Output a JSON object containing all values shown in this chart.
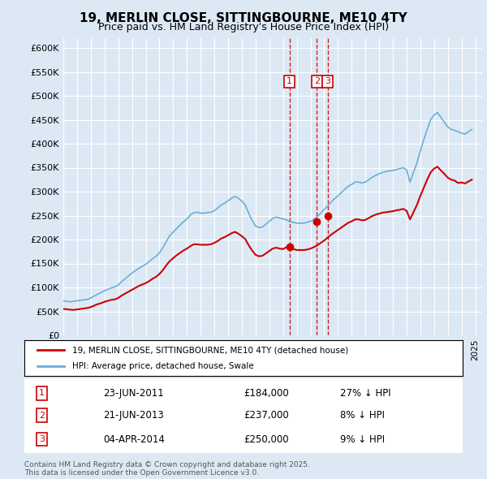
{
  "title": "19, MERLIN CLOSE, SITTINGBOURNE, ME10 4TY",
  "subtitle": "Price paid vs. HM Land Registry's House Price Index (HPI)",
  "background_color": "#dce9f5",
  "plot_background_color": "#dce9f5",
  "ylim": [
    0,
    620000
  ],
  "yticks": [
    0,
    50000,
    100000,
    150000,
    200000,
    250000,
    300000,
    350000,
    400000,
    450000,
    500000,
    550000,
    600000
  ],
  "ytick_labels": [
    "£0",
    "£50K",
    "£100K",
    "£150K",
    "£200K",
    "£250K",
    "£300K",
    "£350K",
    "£400K",
    "£450K",
    "£500K",
    "£550K",
    "£600K"
  ],
  "xlim_start": 1995.0,
  "xlim_end": 2025.5,
  "hpi_line_color": "#6baed6",
  "price_line_color": "#cc0000",
  "marker_color": "#cc0000",
  "vline_color": "#cc0000",
  "legend_label_red": "19, MERLIN CLOSE, SITTINGBOURNE, ME10 4TY (detached house)",
  "legend_label_blue": "HPI: Average price, detached house, Swale",
  "footnote": "Contains HM Land Registry data © Crown copyright and database right 2025.\nThis data is licensed under the Open Government Licence v3.0.",
  "purchases": [
    {
      "num": 1,
      "date": "23-JUN-2011",
      "price": 184000,
      "pct": "27%",
      "direction": "↓",
      "year": 2011.47
    },
    {
      "num": 2,
      "date": "21-JUN-2013",
      "price": 237000,
      "pct": "8%",
      "direction": "↓",
      "year": 2013.47
    },
    {
      "num": 3,
      "date": "04-APR-2014",
      "price": 250000,
      "pct": "9%",
      "direction": "↓",
      "year": 2014.25
    }
  ],
  "hpi_data": {
    "years": [
      1995.0,
      1995.25,
      1995.5,
      1995.75,
      1996.0,
      1996.25,
      1996.5,
      1996.75,
      1997.0,
      1997.25,
      1997.5,
      1997.75,
      1998.0,
      1998.25,
      1998.5,
      1998.75,
      1999.0,
      1999.25,
      1999.5,
      1999.75,
      2000.0,
      2000.25,
      2000.5,
      2000.75,
      2001.0,
      2001.25,
      2001.5,
      2001.75,
      2002.0,
      2002.25,
      2002.5,
      2002.75,
      2003.0,
      2003.25,
      2003.5,
      2003.75,
      2004.0,
      2004.25,
      2004.5,
      2004.75,
      2005.0,
      2005.25,
      2005.5,
      2005.75,
      2006.0,
      2006.25,
      2006.5,
      2006.75,
      2007.0,
      2007.25,
      2007.5,
      2007.75,
      2008.0,
      2008.25,
      2008.5,
      2008.75,
      2009.0,
      2009.25,
      2009.5,
      2009.75,
      2010.0,
      2010.25,
      2010.5,
      2010.75,
      2011.0,
      2011.25,
      2011.5,
      2011.75,
      2012.0,
      2012.25,
      2012.5,
      2012.75,
      2013.0,
      2013.25,
      2013.5,
      2013.75,
      2014.0,
      2014.25,
      2014.5,
      2014.75,
      2015.0,
      2015.25,
      2015.5,
      2015.75,
      2016.0,
      2016.25,
      2016.5,
      2016.75,
      2017.0,
      2017.25,
      2017.5,
      2017.75,
      2018.0,
      2018.25,
      2018.5,
      2018.75,
      2019.0,
      2019.25,
      2019.5,
      2019.75,
      2020.0,
      2020.25,
      2020.5,
      2020.75,
      2021.0,
      2021.25,
      2021.5,
      2021.75,
      2022.0,
      2022.25,
      2022.5,
      2022.75,
      2023.0,
      2023.25,
      2023.5,
      2023.75,
      2024.0,
      2024.25,
      2024.5,
      2024.75
    ],
    "values": [
      72000,
      71000,
      70000,
      71000,
      72000,
      73000,
      74000,
      75000,
      78000,
      82000,
      86000,
      89000,
      93000,
      96000,
      99000,
      101000,
      105000,
      112000,
      118000,
      124000,
      130000,
      135000,
      140000,
      144000,
      148000,
      154000,
      160000,
      165000,
      172000,
      183000,
      196000,
      208000,
      215000,
      223000,
      230000,
      237000,
      243000,
      251000,
      256000,
      257000,
      255000,
      255000,
      256000,
      257000,
      260000,
      266000,
      272000,
      276000,
      281000,
      286000,
      290000,
      286000,
      280000,
      272000,
      255000,
      240000,
      228000,
      225000,
      226000,
      232000,
      238000,
      244000,
      247000,
      245000,
      243000,
      241000,
      237000,
      236000,
      234000,
      234000,
      234000,
      236000,
      238000,
      242000,
      248000,
      255000,
      263000,
      270000,
      278000,
      285000,
      291000,
      298000,
      305000,
      311000,
      315000,
      320000,
      320000,
      318000,
      320000,
      325000,
      330000,
      334000,
      337000,
      340000,
      342000,
      343000,
      344000,
      346000,
      348000,
      350000,
      345000,
      320000,
      340000,
      360000,
      385000,
      408000,
      430000,
      450000,
      460000,
      465000,
      455000,
      445000,
      435000,
      430000,
      428000,
      425000,
      422000,
      420000,
      425000,
      430000
    ]
  },
  "price_data": {
    "years": [
      1995.0,
      1995.25,
      1995.5,
      1995.75,
      1996.0,
      1996.25,
      1996.5,
      1996.75,
      1997.0,
      1997.25,
      1997.5,
      1997.75,
      1998.0,
      1998.25,
      1998.5,
      1998.75,
      1999.0,
      1999.25,
      1999.5,
      1999.75,
      2000.0,
      2000.25,
      2000.5,
      2000.75,
      2001.0,
      2001.25,
      2001.5,
      2001.75,
      2002.0,
      2002.25,
      2002.5,
      2002.75,
      2003.0,
      2003.25,
      2003.5,
      2003.75,
      2004.0,
      2004.25,
      2004.5,
      2004.75,
      2005.0,
      2005.25,
      2005.5,
      2005.75,
      2006.0,
      2006.25,
      2006.5,
      2006.75,
      2007.0,
      2007.25,
      2007.5,
      2007.75,
      2008.0,
      2008.25,
      2008.5,
      2008.75,
      2009.0,
      2009.25,
      2009.5,
      2009.75,
      2010.0,
      2010.25,
      2010.5,
      2010.75,
      2011.0,
      2011.25,
      2011.5,
      2011.75,
      2012.0,
      2012.25,
      2012.5,
      2012.75,
      2013.0,
      2013.25,
      2013.5,
      2013.75,
      2014.0,
      2014.25,
      2014.5,
      2014.75,
      2015.0,
      2015.25,
      2015.5,
      2015.75,
      2016.0,
      2016.25,
      2016.5,
      2016.75,
      2017.0,
      2017.25,
      2017.5,
      2017.75,
      2018.0,
      2018.25,
      2018.5,
      2018.75,
      2019.0,
      2019.25,
      2019.5,
      2019.75,
      2020.0,
      2020.25,
      2020.5,
      2020.75,
      2021.0,
      2021.25,
      2021.5,
      2021.75,
      2022.0,
      2022.25,
      2022.5,
      2022.75,
      2023.0,
      2023.25,
      2023.5,
      2023.75,
      2024.0,
      2024.25,
      2024.5,
      2024.75
    ],
    "values": [
      55000,
      54500,
      53500,
      53000,
      54000,
      55000,
      56000,
      57000,
      59000,
      62000,
      65000,
      67000,
      70000,
      72000,
      74000,
      75000,
      78000,
      83000,
      87000,
      91000,
      95000,
      99000,
      103000,
      106000,
      109000,
      113000,
      118000,
      122000,
      128000,
      136000,
      146000,
      155000,
      161000,
      167000,
      172000,
      177000,
      181000,
      186000,
      190000,
      190000,
      189000,
      189000,
      189000,
      190000,
      193000,
      197000,
      202000,
      205000,
      209000,
      213000,
      216000,
      212000,
      207000,
      201000,
      188000,
      177000,
      168000,
      165000,
      166000,
      171000,
      176000,
      181000,
      183000,
      181000,
      180000,
      184000,
      182000,
      180000,
      178000,
      178000,
      178000,
      179000,
      181000,
      184000,
      188000,
      193000,
      198000,
      204000,
      210000,
      215000,
      220000,
      225000,
      230000,
      235000,
      238000,
      242000,
      242000,
      240000,
      241000,
      245000,
      249000,
      252000,
      254000,
      256000,
      257000,
      258000,
      259000,
      261000,
      262000,
      264000,
      260000,
      242000,
      257000,
      272000,
      291000,
      308000,
      325000,
      340000,
      348000,
      352000,
      344000,
      337000,
      329000,
      325000,
      323000,
      318000,
      319000,
      317000,
      321000,
      325000
    ]
  }
}
